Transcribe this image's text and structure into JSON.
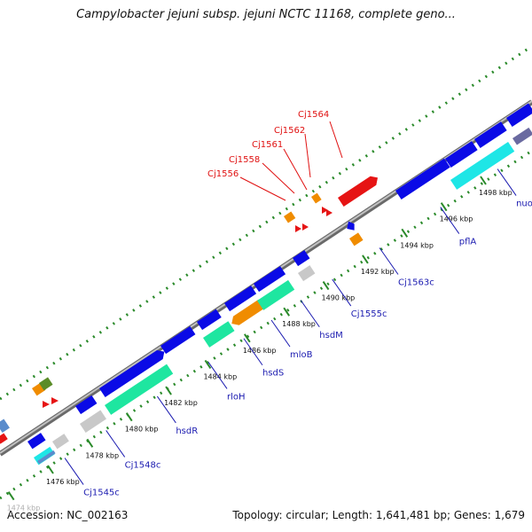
{
  "title": "Campylobacter jejuni subsp. jejuni NCTC 11168, complete geno...",
  "footer": {
    "accession": "Accession: NC_002163",
    "summary": "Topology: circular; Length: 1,641,481 bp; Genes: 1,679"
  },
  "ticks": [
    {
      "label": "1474 kbp",
      "kbp": 1474,
      "faded": true
    },
    {
      "label": "1476 kbp",
      "kbp": 1476
    },
    {
      "label": "1478 kbp",
      "kbp": 1478
    },
    {
      "label": "1480 kbp",
      "kbp": 1480
    },
    {
      "label": "1482 kbp",
      "kbp": 1482
    },
    {
      "label": "1484 kbp",
      "kbp": 1484
    },
    {
      "label": "1486 kbp",
      "kbp": 1486
    },
    {
      "label": "1488 kbp",
      "kbp": 1488
    },
    {
      "label": "1490 kbp",
      "kbp": 1490
    },
    {
      "label": "1492 kbp",
      "kbp": 1492
    },
    {
      "label": "1494 kbp",
      "kbp": 1494
    },
    {
      "label": "1496 kbp",
      "kbp": 1496
    },
    {
      "label": "1498 kbp",
      "kbp": 1498
    }
  ],
  "gene_labels": [
    {
      "name": "Cj1545c",
      "kbp": 1476.5
    },
    {
      "name": "Cj1548c",
      "kbp": 1478.6
    },
    {
      "name": "hsdR",
      "kbp": 1481.2
    },
    {
      "name": "rloH",
      "kbp": 1483.8
    },
    {
      "name": "hsdS",
      "kbp": 1485.6
    },
    {
      "name": "mloB",
      "kbp": 1487.0
    },
    {
      "name": "hsdM",
      "kbp": 1488.5
    },
    {
      "name": "Cj1555c",
      "kbp": 1490.1
    },
    {
      "name": "Cj1563c",
      "kbp": 1492.5
    },
    {
      "name": "pflA",
      "kbp": 1495.6
    },
    {
      "name": "nuoN",
      "kbp": 1498.5
    }
  ],
  "highlighted_labels": [
    {
      "name": "Cj1556",
      "color": "#e01010"
    },
    {
      "name": "Cj1558",
      "color": "#e01010"
    },
    {
      "name": "Cj1561",
      "color": "#e01010"
    },
    {
      "name": "Cj1562",
      "color": "#e01010"
    },
    {
      "name": "Cj1564",
      "color": "#e01010"
    }
  ],
  "colors": {
    "cds": "#0a0ae6",
    "rna": "#1ee6a0",
    "orange": "#f08c00",
    "gray": "#c8c8c8",
    "cyan": "#1ee6e6",
    "red": "#e61414",
    "olive": "#5a8c28",
    "backbone": "#909090",
    "tick_dot": "#2a8a2a"
  }
}
